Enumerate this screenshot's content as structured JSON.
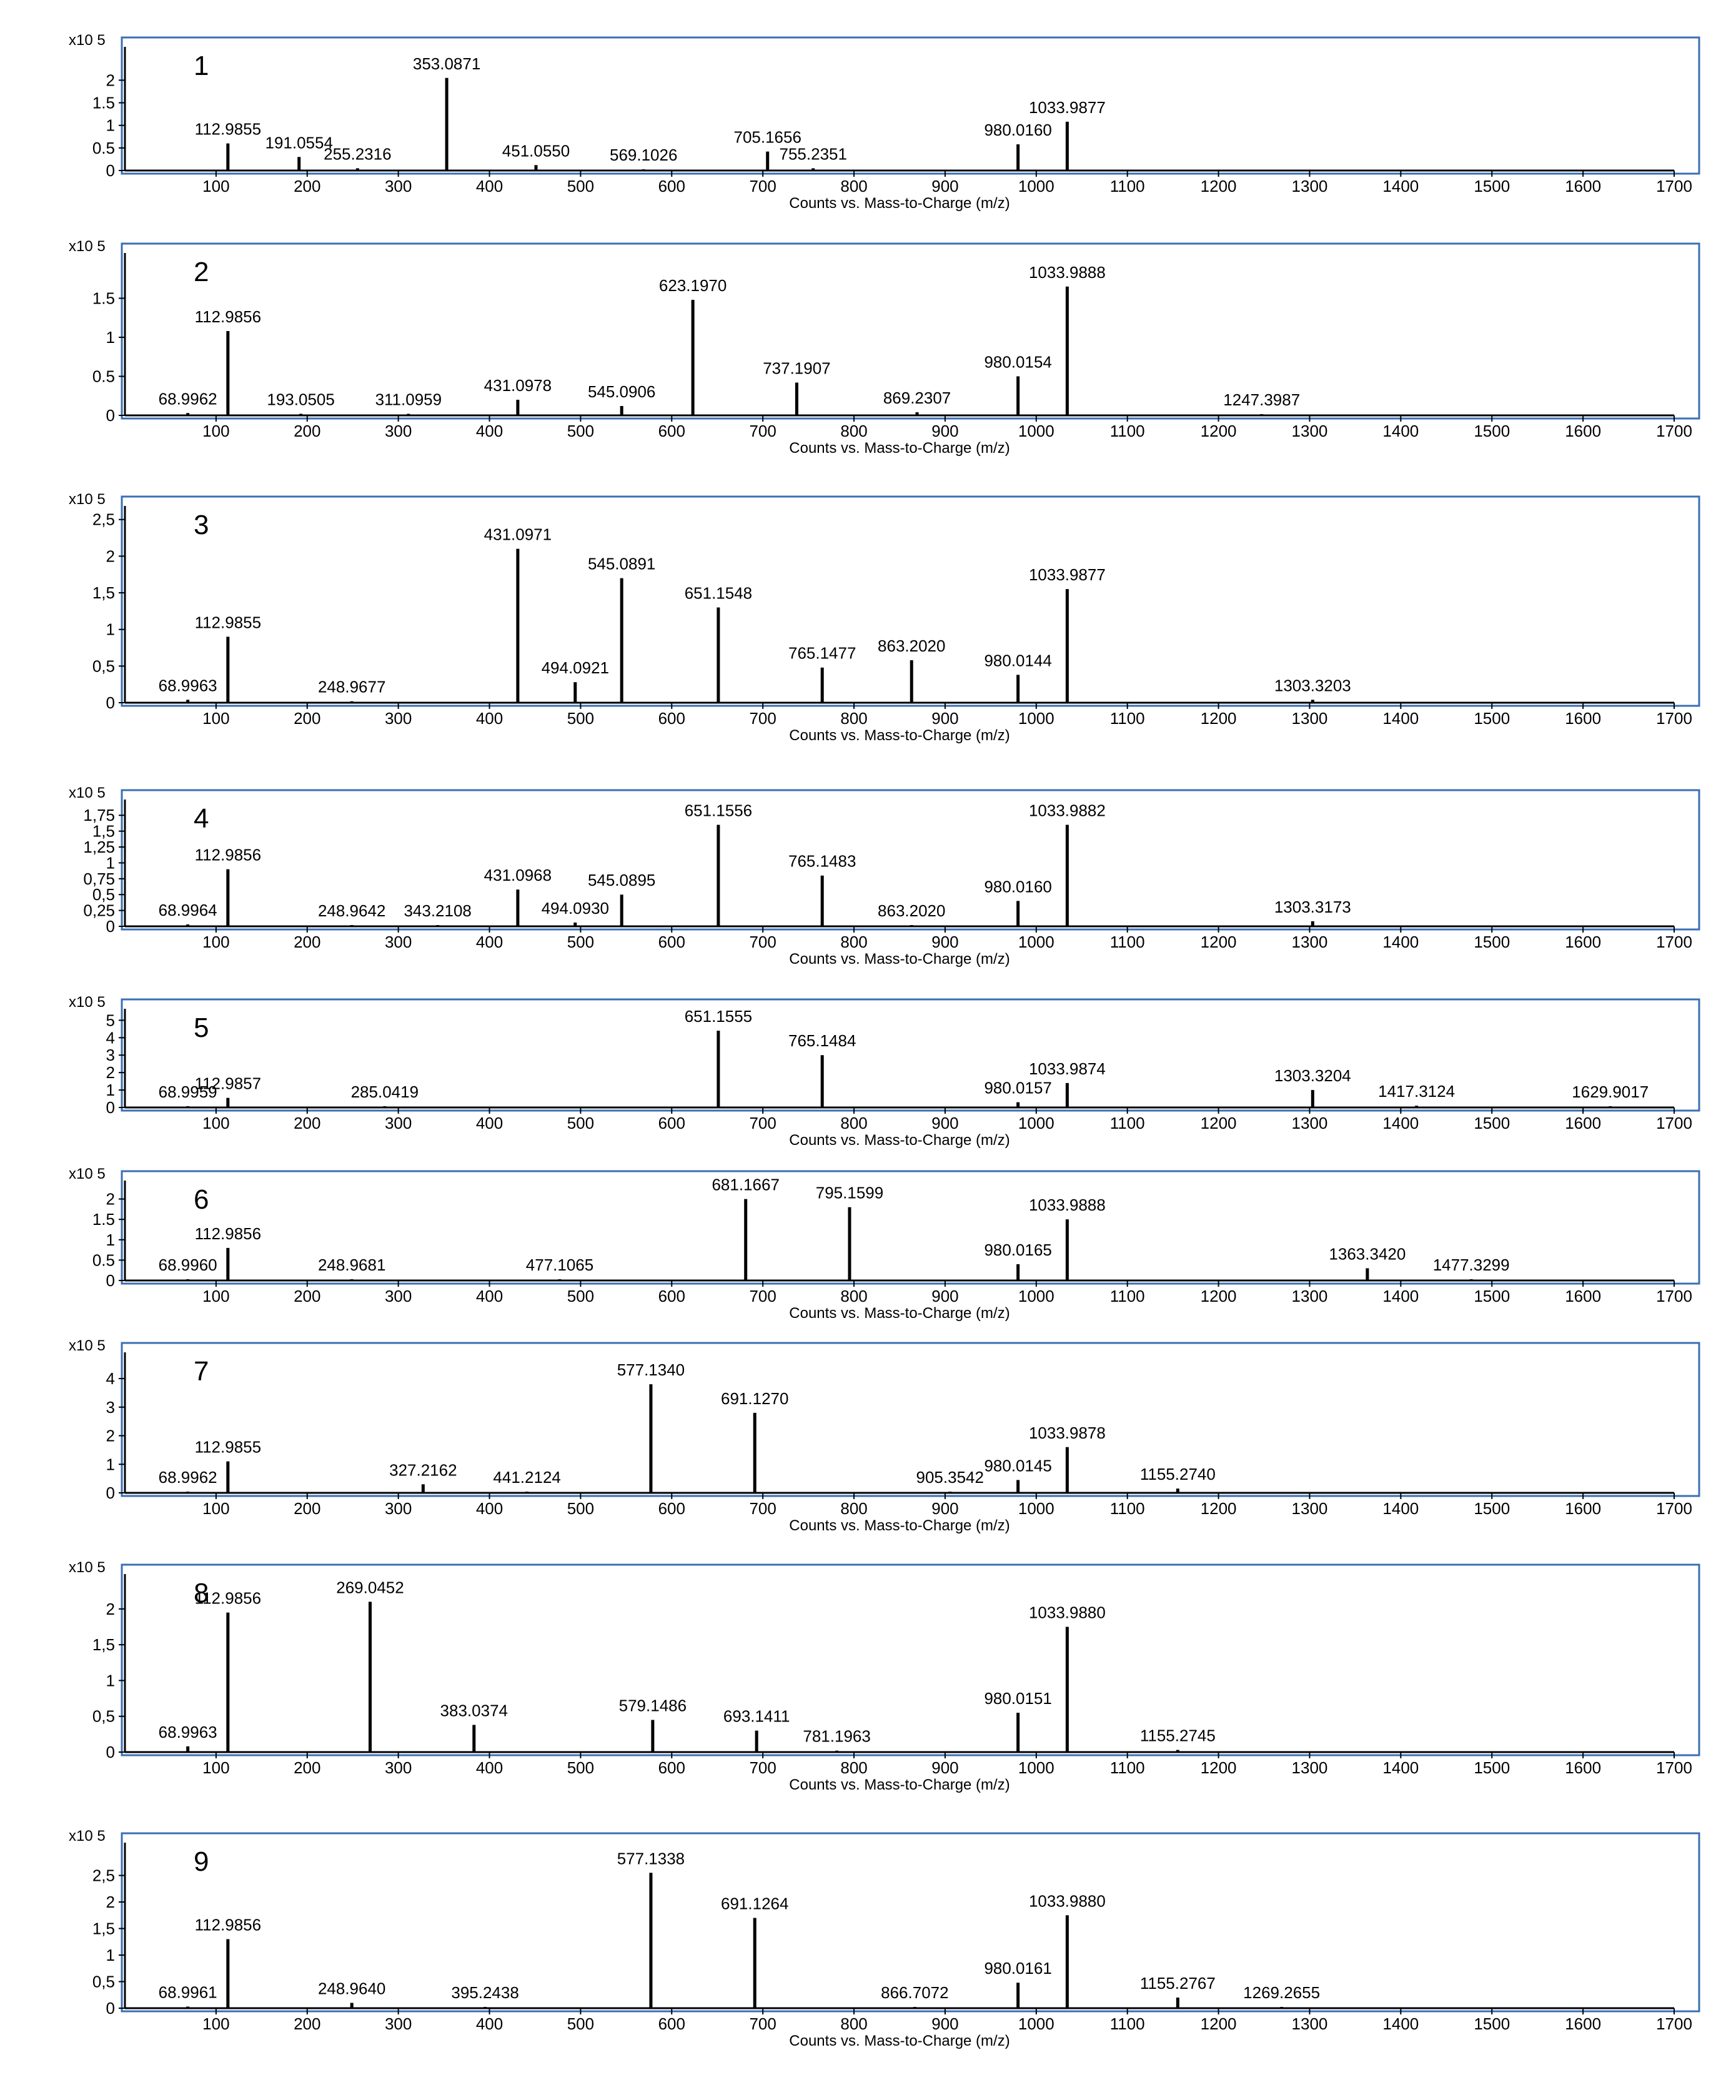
{
  "chart_data": [
    {
      "type": "line",
      "panel_label": "1",
      "scale_label": "x10 5",
      "xlabel": "Counts vs. Mass-to-Charge (m/z)",
      "xlim": [
        0,
        1700
      ],
      "ylim": [
        0,
        2.6
      ],
      "yticks": [
        0,
        0.5,
        1,
        1.5,
        2
      ],
      "ytick_labels": [
        "0",
        "0.5",
        "1",
        "1.5",
        "2"
      ],
      "xticks": [
        100,
        200,
        300,
        400,
        500,
        600,
        700,
        800,
        900,
        1000,
        1100,
        1200,
        1300,
        1400,
        1500,
        1600,
        1700
      ],
      "peaks": [
        {
          "x": 112.9855,
          "y": 0.6,
          "label": "112.9855"
        },
        {
          "x": 191.0554,
          "y": 0.3,
          "label": "191.0554"
        },
        {
          "x": 255.2316,
          "y": 0.05,
          "label": "255.2316"
        },
        {
          "x": 353.0871,
          "y": 2.05,
          "label": "353.0871"
        },
        {
          "x": 451.055,
          "y": 0.12,
          "label": "451.0550"
        },
        {
          "x": 569.1026,
          "y": 0.02,
          "label": "569.1026"
        },
        {
          "x": 705.1656,
          "y": 0.42,
          "label": "705.1656"
        },
        {
          "x": 755.2351,
          "y": 0.05,
          "label": "755.2351"
        },
        {
          "x": 980.016,
          "y": 0.58,
          "label": "980.0160"
        },
        {
          "x": 1033.9877,
          "y": 1.08,
          "label": "1033.9877"
        }
      ]
    },
    {
      "type": "line",
      "panel_label": "2",
      "scale_label": "x10 5",
      "xlabel": "Counts vs. Mass-to-Charge (m/z)",
      "xlim": [
        0,
        1700
      ],
      "ylim": [
        0,
        2.0
      ],
      "yticks": [
        0,
        0.5,
        1,
        1.5
      ],
      "ytick_labels": [
        "0",
        "0.5",
        "1",
        "1.5"
      ],
      "xticks": [
        100,
        200,
        300,
        400,
        500,
        600,
        700,
        800,
        900,
        1000,
        1100,
        1200,
        1300,
        1400,
        1500,
        1600,
        1700
      ],
      "peaks": [
        {
          "x": 68.9962,
          "y": 0.03,
          "label": "68.9962"
        },
        {
          "x": 112.9856,
          "y": 1.08,
          "label": "112.9856"
        },
        {
          "x": 193.0505,
          "y": 0.02,
          "label": "193.0505"
        },
        {
          "x": 311.0959,
          "y": 0.02,
          "label": "311.0959"
        },
        {
          "x": 431.0978,
          "y": 0.2,
          "label": "431.0978"
        },
        {
          "x": 545.0906,
          "y": 0.12,
          "label": "545.0906"
        },
        {
          "x": 623.197,
          "y": 1.48,
          "label": "623.1970"
        },
        {
          "x": 737.1907,
          "y": 0.42,
          "label": "737.1907"
        },
        {
          "x": 869.2307,
          "y": 0.04,
          "label": "869.2307"
        },
        {
          "x": 980.0154,
          "y": 0.5,
          "label": "980.0154"
        },
        {
          "x": 1033.9888,
          "y": 1.65,
          "label": "1033.9888"
        },
        {
          "x": 1247.3987,
          "y": 0.01,
          "label": "1247.3987"
        }
      ]
    },
    {
      "type": "line",
      "panel_label": "3",
      "scale_label": "x10 5",
      "xlabel": "Counts vs. Mass-to-Charge (m/z)",
      "xlim": [
        0,
        1700
      ],
      "ylim": [
        0,
        2.6
      ],
      "yticks": [
        0,
        0.5,
        1,
        1.5,
        2,
        2.5
      ],
      "ytick_labels": [
        "0",
        "0,5",
        "1",
        "1,5",
        "2",
        "2,5"
      ],
      "xticks": [
        100,
        200,
        300,
        400,
        500,
        600,
        700,
        800,
        900,
        1000,
        1100,
        1200,
        1300,
        1400,
        1500,
        1600,
        1700
      ],
      "peaks": [
        {
          "x": 68.9963,
          "y": 0.04,
          "label": "68.9963"
        },
        {
          "x": 112.9855,
          "y": 0.9,
          "label": "112.9855"
        },
        {
          "x": 248.9677,
          "y": 0.02,
          "label": "248.9677"
        },
        {
          "x": 431.0971,
          "y": 2.1,
          "label": "431.0971"
        },
        {
          "x": 494.0921,
          "y": 0.28,
          "label": "494.0921"
        },
        {
          "x": 545.0891,
          "y": 1.7,
          "label": "545.0891"
        },
        {
          "x": 651.1548,
          "y": 1.3,
          "label": "651.1548"
        },
        {
          "x": 765.1477,
          "y": 0.48,
          "label": "765.1477"
        },
        {
          "x": 863.202,
          "y": 0.58,
          "label": "863.2020"
        },
        {
          "x": 980.0144,
          "y": 0.38,
          "label": "980.0144"
        },
        {
          "x": 1033.9877,
          "y": 1.55,
          "label": "1033.9877"
        },
        {
          "x": 1303.3203,
          "y": 0.04,
          "label": "1303.3203"
        }
      ]
    },
    {
      "type": "line",
      "panel_label": "4",
      "scale_label": "x10 5",
      "xlabel": "Counts vs. Mass-to-Charge (m/z)",
      "xlim": [
        0,
        1700
      ],
      "ylim": [
        0,
        1.9
      ],
      "yticks": [
        0,
        0.25,
        0.5,
        0.75,
        1,
        1.25,
        1.5,
        1.75
      ],
      "ytick_labels": [
        "0",
        "0,25",
        "0,5",
        "0,75",
        "1",
        "1,25",
        "1,5",
        "1,75"
      ],
      "xticks": [
        100,
        200,
        300,
        400,
        500,
        600,
        700,
        800,
        900,
        1000,
        1100,
        1200,
        1300,
        1400,
        1500,
        1600,
        1700
      ],
      "peaks": [
        {
          "x": 68.9964,
          "y": 0.03,
          "label": "68.9964"
        },
        {
          "x": 112.9856,
          "y": 0.9,
          "label": "112.9856"
        },
        {
          "x": 248.9642,
          "y": 0.02,
          "label": "248.9642"
        },
        {
          "x": 343.2108,
          "y": 0.01,
          "label": "343.2108"
        },
        {
          "x": 431.0968,
          "y": 0.58,
          "label": "431.0968"
        },
        {
          "x": 494.093,
          "y": 0.06,
          "label": "494.0930"
        },
        {
          "x": 545.0895,
          "y": 0.5,
          "label": "545.0895"
        },
        {
          "x": 651.1556,
          "y": 1.6,
          "label": "651.1556"
        },
        {
          "x": 765.1483,
          "y": 0.8,
          "label": "765.1483"
        },
        {
          "x": 863.202,
          "y": 0.01,
          "label": "863.2020"
        },
        {
          "x": 980.016,
          "y": 0.4,
          "label": "980.0160"
        },
        {
          "x": 1033.9882,
          "y": 1.6,
          "label": "1033.9882"
        },
        {
          "x": 1303.3173,
          "y": 0.08,
          "label": "1303.3173"
        }
      ]
    },
    {
      "type": "line",
      "panel_label": "5",
      "scale_label": "x10 5",
      "xlabel": "Counts vs. Mass-to-Charge (m/z)",
      "xlim": [
        0,
        1700
      ],
      "ylim": [
        0,
        5.3
      ],
      "yticks": [
        0,
        1,
        2,
        3,
        4,
        5
      ],
      "ytick_labels": [
        "0",
        "1",
        "2",
        "3",
        "4",
        "5"
      ],
      "xticks": [
        100,
        200,
        300,
        400,
        500,
        600,
        700,
        800,
        900,
        1000,
        1100,
        1200,
        1300,
        1400,
        1500,
        1600,
        1700
      ],
      "peaks": [
        {
          "x": 68.9959,
          "y": 0.03,
          "label": "68.9959"
        },
        {
          "x": 112.9857,
          "y": 0.55,
          "label": "112.9857"
        },
        {
          "x": 285.0419,
          "y": 0.02,
          "label": "285.0419"
        },
        {
          "x": 651.1555,
          "y": 4.4,
          "label": "651.1555"
        },
        {
          "x": 765.1484,
          "y": 3.0,
          "label": "765.1484"
        },
        {
          "x": 980.0157,
          "y": 0.3,
          "label": "980.0157"
        },
        {
          "x": 1033.9874,
          "y": 1.4,
          "label": "1033.9874"
        },
        {
          "x": 1303.3204,
          "y": 1.0,
          "label": "1303.3204"
        },
        {
          "x": 1417.3124,
          "y": 0.1,
          "label": "1417.3124"
        },
        {
          "x": 1629.9017,
          "y": 0.02,
          "label": "1629.9017"
        }
      ]
    },
    {
      "type": "line",
      "panel_label": "6",
      "scale_label": "x10 5",
      "xlabel": "Counts vs. Mass-to-Charge (m/z)",
      "xlim": [
        0,
        1700
      ],
      "ylim": [
        0,
        2.3
      ],
      "yticks": [
        0,
        0.5,
        1,
        1.5,
        2
      ],
      "ytick_labels": [
        "0",
        "0.5",
        "1",
        "1.5",
        "2"
      ],
      "xticks": [
        100,
        200,
        300,
        400,
        500,
        600,
        700,
        800,
        900,
        1000,
        1100,
        1200,
        1300,
        1400,
        1500,
        1600,
        1700
      ],
      "peaks": [
        {
          "x": 68.996,
          "y": 0.03,
          "label": "68.9960"
        },
        {
          "x": 112.9856,
          "y": 0.8,
          "label": "112.9856"
        },
        {
          "x": 248.9681,
          "y": 0.02,
          "label": "248.9681"
        },
        {
          "x": 477.1065,
          "y": 0.01,
          "label": "477.1065"
        },
        {
          "x": 681.1667,
          "y": 2.0,
          "label": "681.1667"
        },
        {
          "x": 795.1599,
          "y": 1.8,
          "label": "795.1599"
        },
        {
          "x": 980.0165,
          "y": 0.4,
          "label": "980.0165"
        },
        {
          "x": 1033.9888,
          "y": 1.5,
          "label": "1033.9888"
        },
        {
          "x": 1363.342,
          "y": 0.3,
          "label": "1363.3420"
        },
        {
          "x": 1477.3299,
          "y": 0.02,
          "label": "1477.3299"
        }
      ]
    },
    {
      "type": "line",
      "panel_label": "7",
      "scale_label": "x10 5",
      "xlabel": "Counts vs. Mass-to-Charge (m/z)",
      "xlim": [
        0,
        1700
      ],
      "ylim": [
        0,
        4.7
      ],
      "yticks": [
        0,
        1,
        2,
        3,
        4
      ],
      "ytick_labels": [
        "0",
        "1",
        "2",
        "3",
        "4"
      ],
      "xticks": [
        100,
        200,
        300,
        400,
        500,
        600,
        700,
        800,
        900,
        1000,
        1100,
        1200,
        1300,
        1400,
        1500,
        1600,
        1700
      ],
      "peaks": [
        {
          "x": 68.9962,
          "y": 0.03,
          "label": "68.9962"
        },
        {
          "x": 112.9855,
          "y": 1.1,
          "label": "112.9855"
        },
        {
          "x": 327.2162,
          "y": 0.3,
          "label": "327.2162"
        },
        {
          "x": 441.2124,
          "y": 0.02,
          "label": "441.2124"
        },
        {
          "x": 577.134,
          "y": 3.8,
          "label": "577.1340"
        },
        {
          "x": 691.127,
          "y": 2.8,
          "label": "691.1270"
        },
        {
          "x": 905.3542,
          "y": 0.02,
          "label": "905.3542"
        },
        {
          "x": 980.0145,
          "y": 0.45,
          "label": "980.0145"
        },
        {
          "x": 1033.9878,
          "y": 1.6,
          "label": "1033.9878"
        },
        {
          "x": 1155.274,
          "y": 0.15,
          "label": "1155.2740"
        }
      ]
    },
    {
      "type": "line",
      "panel_label": "8",
      "scale_label": "x10 5",
      "xlabel": "Counts vs. Mass-to-Charge (m/z)",
      "xlim": [
        0,
        1700
      ],
      "ylim": [
        0,
        2.4
      ],
      "yticks": [
        0,
        0.5,
        1,
        1.5,
        2
      ],
      "ytick_labels": [
        "0",
        "0,5",
        "1",
        "1,5",
        "2"
      ],
      "xticks": [
        100,
        200,
        300,
        400,
        500,
        600,
        700,
        800,
        900,
        1000,
        1100,
        1200,
        1300,
        1400,
        1500,
        1600,
        1700
      ],
      "peaks": [
        {
          "x": 68.9963,
          "y": 0.08,
          "label": "68.9963"
        },
        {
          "x": 112.9856,
          "y": 1.95,
          "label": "112.9856"
        },
        {
          "x": 269.0452,
          "y": 2.1,
          "label": "269.0452"
        },
        {
          "x": 383.0374,
          "y": 0.38,
          "label": "383.0374"
        },
        {
          "x": 579.1486,
          "y": 0.45,
          "label": "579.1486"
        },
        {
          "x": 693.1411,
          "y": 0.3,
          "label": "693.1411"
        },
        {
          "x": 781.1963,
          "y": 0.02,
          "label": "781.1963"
        },
        {
          "x": 980.0151,
          "y": 0.55,
          "label": "980.0151"
        },
        {
          "x": 1033.988,
          "y": 1.75,
          "label": "1033.9880"
        },
        {
          "x": 1155.2745,
          "y": 0.03,
          "label": "1155.2745"
        }
      ]
    },
    {
      "type": "line",
      "panel_label": "9",
      "scale_label": "x10 5",
      "xlabel": "Counts vs. Mass-to-Charge (m/z)",
      "xlim": [
        0,
        1700
      ],
      "ylim": [
        0,
        3.0
      ],
      "yticks": [
        0,
        0.5,
        1,
        1.5,
        2,
        2.5
      ],
      "ytick_labels": [
        "0",
        "0,5",
        "1",
        "1,5",
        "2",
        "2,5"
      ],
      "xticks": [
        100,
        200,
        300,
        400,
        500,
        600,
        700,
        800,
        900,
        1000,
        1100,
        1200,
        1300,
        1400,
        1500,
        1600,
        1700
      ],
      "peaks": [
        {
          "x": 68.9961,
          "y": 0.03,
          "label": "68.9961"
        },
        {
          "x": 112.9856,
          "y": 1.3,
          "label": "112.9856"
        },
        {
          "x": 248.964,
          "y": 0.1,
          "label": "248.9640"
        },
        {
          "x": 395.2438,
          "y": 0.02,
          "label": "395.2438"
        },
        {
          "x": 577.1338,
          "y": 2.55,
          "label": "577.1338"
        },
        {
          "x": 691.1264,
          "y": 1.7,
          "label": "691.1264"
        },
        {
          "x": 866.7072,
          "y": 0.02,
          "label": "866.7072"
        },
        {
          "x": 980.0161,
          "y": 0.48,
          "label": "980.0161"
        },
        {
          "x": 1033.988,
          "y": 1.75,
          "label": "1033.9880"
        },
        {
          "x": 1155.2767,
          "y": 0.2,
          "label": "1155.2767"
        },
        {
          "x": 1269.2655,
          "y": 0.02,
          "label": "1269.2655"
        }
      ]
    }
  ]
}
